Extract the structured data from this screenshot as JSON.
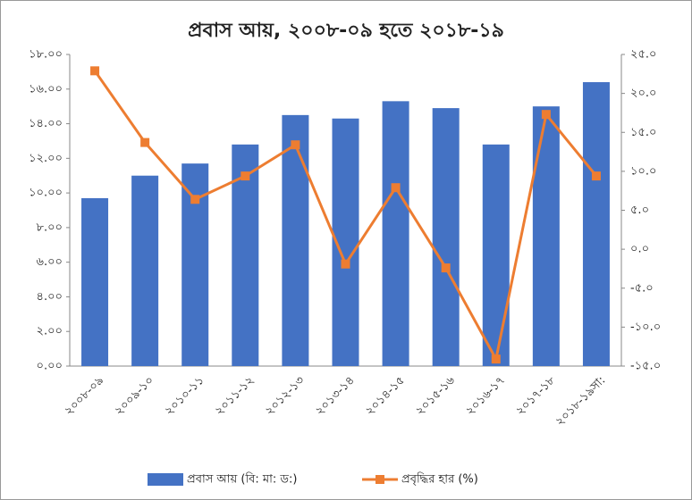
{
  "chart_data": {
    "type": "bar-line",
    "title": "প্রবাস আয়, ২০০৮-০৯ হতে ২০১৮-১৯",
    "categories": [
      "২০০৮-০৯",
      "২০০৯-১০",
      "২০১০-১১",
      "২০১১-১২",
      "২০১২-১৩",
      "২০১৩-১৪",
      "২০১৪-১৫",
      "২০১৫-১৬",
      "২০১৬-১৭",
      "২০১৭-১৮",
      "২০১৮-১৯সা:"
    ],
    "series": [
      {
        "name": "প্রবাস আয়  (বি: মা: ড:)",
        "type": "bar",
        "color": "#4472c4",
        "values": [
          9.7,
          11.0,
          11.7,
          12.8,
          14.5,
          14.3,
          15.3,
          14.9,
          12.8,
          15.0,
          16.4
        ]
      },
      {
        "name": "প্রবৃদ্ধির হার (%)",
        "type": "line",
        "axis": "y2",
        "color": "#ed7d31",
        "values": [
          22.9,
          13.7,
          6.4,
          9.4,
          13.4,
          -1.9,
          7.9,
          -2.4,
          -14.1,
          17.3,
          9.4
        ]
      }
    ],
    "ylim": [
      0,
      18
    ],
    "yticks": [
      {
        "value": 0,
        "label": "০.০০"
      },
      {
        "value": 2,
        "label": "২.০০"
      },
      {
        "value": 4,
        "label": "৪.০০"
      },
      {
        "value": 6,
        "label": "৬.০০"
      },
      {
        "value": 8,
        "label": "৮.০০"
      },
      {
        "value": 10,
        "label": "১০.০০"
      },
      {
        "value": 12,
        "label": "১২.০০"
      },
      {
        "value": 14,
        "label": "১৪.০০"
      },
      {
        "value": 16,
        "label": "১৬.০০"
      },
      {
        "value": 18,
        "label": "১৮.০০"
      }
    ],
    "y2lim": [
      -15,
      25
    ],
    "y2ticks": [
      {
        "value": -15,
        "label": "-১৫.০"
      },
      {
        "value": -10,
        "label": "-১০.০"
      },
      {
        "value": -5,
        "label": "-৫.০"
      },
      {
        "value": 0,
        "label": "০.০"
      },
      {
        "value": 5,
        "label": "৫.০"
      },
      {
        "value": 10,
        "label": "১০.০"
      },
      {
        "value": 15,
        "label": "১৫.০"
      },
      {
        "value": 20,
        "label": "২০.০"
      },
      {
        "value": 25,
        "label": "২৫.০"
      }
    ],
    "legend": "bottom"
  }
}
